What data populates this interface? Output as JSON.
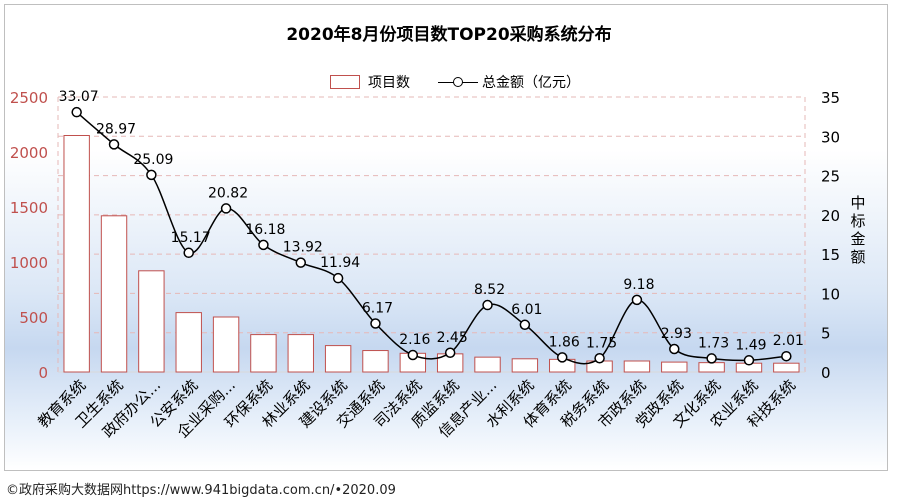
{
  "chart_data": {
    "type": "bar",
    "title": "2020年8月份项目数TOP20采购系统分布",
    "categories": [
      "教育系统",
      "卫生系统",
      "政府办公...",
      "公安系统",
      "企业采购...",
      "环保系统",
      "林业系统",
      "建设系统",
      "交通系统",
      "司法系统",
      "质监系统",
      "信息产业...",
      "水利系统",
      "体育系统",
      "税务系统",
      "市政系统",
      "党政系统",
      "文化系统",
      "农业系统",
      "科技系统"
    ],
    "series": [
      {
        "name": "项目数",
        "type": "bar",
        "axis": "left",
        "color": "#c0504d",
        "values": [
          2150,
          1420,
          920,
          540,
          500,
          340,
          340,
          240,
          195,
          170,
          165,
          135,
          120,
          115,
          100,
          100,
          90,
          85,
          80,
          80
        ]
      },
      {
        "name": "总金额（亿元）",
        "type": "line",
        "axis": "right",
        "color": "#000000",
        "values": [
          33.07,
          28.97,
          25.09,
          15.17,
          20.82,
          16.18,
          13.92,
          11.94,
          6.17,
          2.16,
          2.45,
          8.52,
          6.01,
          1.86,
          1.75,
          9.18,
          2.93,
          1.73,
          1.49,
          2.01
        ]
      }
    ],
    "data_labels": [
      "33.07",
      "28.97",
      "25.09",
      "15.17",
      "20.82",
      "16.18",
      "13.92",
      "11.94",
      "6.17",
      "2.16",
      "2.45",
      "8.52",
      "6.01",
      "1.86",
      "1.75",
      "9.18",
      "2.93",
      "1.73",
      "1.49",
      "2.01"
    ],
    "y_left": {
      "ylim": [
        0,
        2500
      ],
      "ticks": [
        "0",
        "500",
        "1000",
        "1500",
        "2000",
        "2500"
      ],
      "tick_color": "#c0504d"
    },
    "y_right": {
      "ylim": [
        0,
        35
      ],
      "ticks": [
        "0",
        "5",
        "10",
        "15",
        "20",
        "25",
        "30",
        "35"
      ],
      "label": "中标金额"
    },
    "legend": {
      "position": "top",
      "bar_label": "项目数",
      "line_label": "总金额（亿元）"
    },
    "grid": true
  },
  "footer": "©政府采购大数据网https://www.941bigdata.com.cn/•2020.09"
}
